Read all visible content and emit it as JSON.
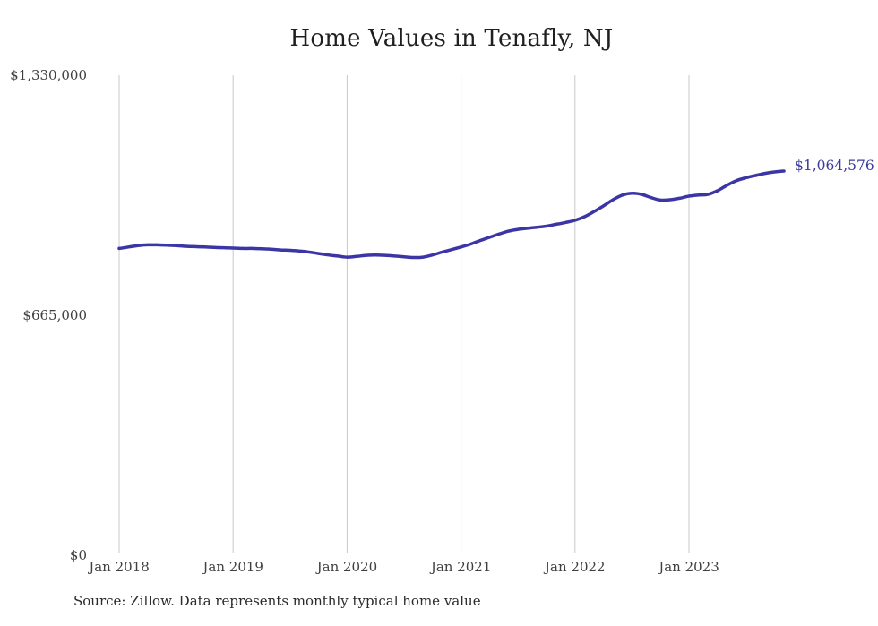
{
  "title": "Home Values in Tenafly, NJ",
  "source_note": "Source: Zillow. Data represents monthly typical home value",
  "end_label": "$1,064,576",
  "colors": {
    "line": "#3b35a6",
    "end_label": "#3a3a9c",
    "grid": "#c9c9c9",
    "title": "#1f1f1f",
    "tick": "#3f3f3f",
    "source": "#2b2b2b",
    "background": "#ffffff"
  },
  "chart_data": {
    "type": "line",
    "title": "Home Values in Tenafly, NJ",
    "xlabel": "",
    "ylabel": "",
    "ylim": [
      0,
      1330000
    ],
    "grid": "vertical-only",
    "legend": "none",
    "y_ticks": [
      {
        "label": "$0",
        "value": 0
      },
      {
        "label": "$665,000",
        "value": 665000
      },
      {
        "label": "$1,330,000",
        "value": 1330000
      }
    ],
    "x_ticks": [
      {
        "label": "Jan 2018",
        "index": 0
      },
      {
        "label": "Jan 2019",
        "index": 12
      },
      {
        "label": "Jan 2020",
        "index": 24
      },
      {
        "label": "Jan 2021",
        "index": 36
      },
      {
        "label": "Jan 2022",
        "index": 48
      },
      {
        "label": "Jan 2023",
        "index": 60
      }
    ],
    "x": [
      "Jan 2018",
      "Feb 2018",
      "Mar 2018",
      "Apr 2018",
      "May 2018",
      "Jun 2018",
      "Jul 2018",
      "Aug 2018",
      "Sep 2018",
      "Oct 2018",
      "Nov 2018",
      "Dec 2018",
      "Jan 2019",
      "Feb 2019",
      "Mar 2019",
      "Apr 2019",
      "May 2019",
      "Jun 2019",
      "Jul 2019",
      "Aug 2019",
      "Sep 2019",
      "Oct 2019",
      "Nov 2019",
      "Dec 2019",
      "Jan 2020",
      "Feb 2020",
      "Mar 2020",
      "Apr 2020",
      "May 2020",
      "Jun 2020",
      "Jul 2020",
      "Aug 2020",
      "Sep 2020",
      "Oct 2020",
      "Nov 2020",
      "Dec 2020",
      "Jan 2021",
      "Feb 2021",
      "Mar 2021",
      "Apr 2021",
      "May 2021",
      "Jun 2021",
      "Jul 2021",
      "Aug 2021",
      "Sep 2021",
      "Oct 2021",
      "Nov 2021",
      "Dec 2021",
      "Jan 2022",
      "Feb 2022",
      "Mar 2022",
      "Apr 2022",
      "May 2022",
      "Jun 2022",
      "Jul 2022",
      "Aug 2022",
      "Sep 2022",
      "Oct 2022",
      "Nov 2022",
      "Dec 2022",
      "Jan 2023",
      "Feb 2023",
      "Mar 2023",
      "Apr 2023",
      "May 2023",
      "Jun 2023",
      "Jul 2023",
      "Aug 2023",
      "Sep 2023",
      "Oct 2023",
      "Nov 2023"
    ],
    "values": [
      850000,
      854000,
      858000,
      860000,
      860000,
      859000,
      858000,
      856000,
      855000,
      854000,
      853000,
      852000,
      851000,
      850000,
      850000,
      849000,
      848000,
      846000,
      845000,
      843000,
      840000,
      836000,
      832000,
      829000,
      826000,
      828000,
      831000,
      832000,
      831000,
      829000,
      827000,
      825000,
      826000,
      832000,
      840000,
      847000,
      854000,
      862000,
      872000,
      881000,
      890000,
      898000,
      903000,
      906000,
      909000,
      912000,
      917000,
      922000,
      928000,
      938000,
      952000,
      968000,
      985000,
      998000,
      1003000,
      1000000,
      991000,
      984000,
      985000,
      989000,
      995000,
      998000,
      1000000,
      1010000,
      1025000,
      1038000,
      1046000,
      1052000,
      1058000,
      1062000,
      1064576
    ],
    "final_value": 1064576,
    "final_value_label": "$1,064,576"
  }
}
